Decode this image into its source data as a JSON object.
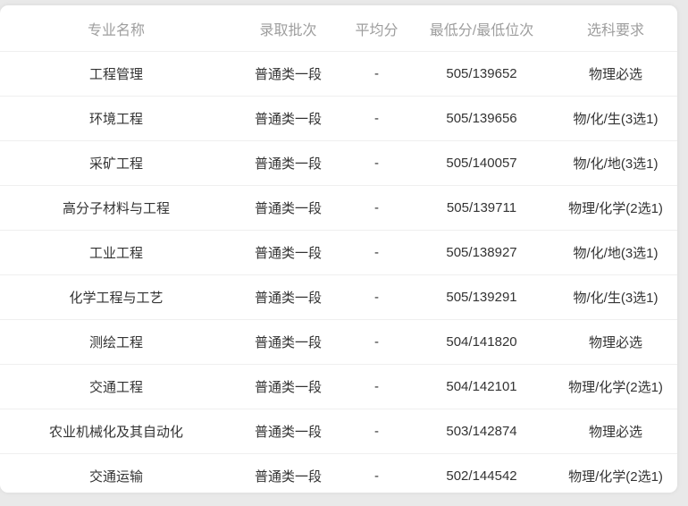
{
  "page": {
    "background_color": "#e9e9e9",
    "card_background_color": "#ffffff",
    "separator_color": "#efefef",
    "header_text_color": "#9e9e9e",
    "body_text_color": "#333333"
  },
  "table": {
    "columns": [
      {
        "key": "major",
        "label": "专业名称"
      },
      {
        "key": "batch",
        "label": "录取批次"
      },
      {
        "key": "avg",
        "label": "平均分"
      },
      {
        "key": "min",
        "label": "最低分/最低位次"
      },
      {
        "key": "req",
        "label": "选科要求"
      }
    ],
    "rows": [
      {
        "major": "工程管理",
        "batch": "普通类一段",
        "avg": "-",
        "min": "505/139652",
        "req": "物理必选"
      },
      {
        "major": "环境工程",
        "batch": "普通类一段",
        "avg": "-",
        "min": "505/139656",
        "req": "物/化/生(3选1)"
      },
      {
        "major": "采矿工程",
        "batch": "普通类一段",
        "avg": "-",
        "min": "505/140057",
        "req": "物/化/地(3选1)"
      },
      {
        "major": "高分子材料与工程",
        "batch": "普通类一段",
        "avg": "-",
        "min": "505/139711",
        "req": "物理/化学(2选1)"
      },
      {
        "major": "工业工程",
        "batch": "普通类一段",
        "avg": "-",
        "min": "505/138927",
        "req": "物/化/地(3选1)"
      },
      {
        "major": "化学工程与工艺",
        "batch": "普通类一段",
        "avg": "-",
        "min": "505/139291",
        "req": "物/化/生(3选1)"
      },
      {
        "major": "测绘工程",
        "batch": "普通类一段",
        "avg": "-",
        "min": "504/141820",
        "req": "物理必选"
      },
      {
        "major": "交通工程",
        "batch": "普通类一段",
        "avg": "-",
        "min": "504/142101",
        "req": "物理/化学(2选1)"
      },
      {
        "major": "农业机械化及其自动化",
        "batch": "普通类一段",
        "avg": "-",
        "min": "503/142874",
        "req": "物理必选"
      },
      {
        "major": "交通运输",
        "batch": "普通类一段",
        "avg": "-",
        "min": "502/144542",
        "req": "物理/化学(2选1)"
      }
    ]
  }
}
